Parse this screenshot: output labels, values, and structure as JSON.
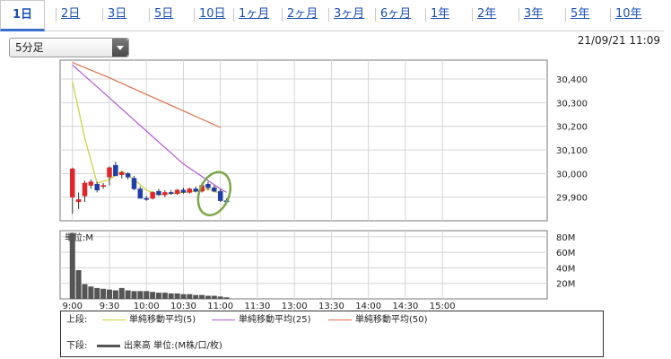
{
  "tabs": [
    {
      "label": "1日",
      "active": true
    },
    {
      "label": "2日"
    },
    {
      "label": "3日"
    },
    {
      "label": "5日"
    },
    {
      "label": "10日"
    },
    {
      "label": "1ヶ月"
    },
    {
      "label": "2ヶ月"
    },
    {
      "label": "3ヶ月"
    },
    {
      "label": "6ヶ月"
    },
    {
      "label": "1年"
    },
    {
      "label": "2年"
    },
    {
      "label": "3年"
    },
    {
      "label": "5年"
    },
    {
      "label": "10年"
    }
  ],
  "interval_select": {
    "selected": "5分足"
  },
  "timestamp": "21/09/21 11:09",
  "legend": {
    "upper_caption": "上段:",
    "lower_caption": "下段:",
    "ma5": {
      "label": "単純移動平均(5)",
      "color": "#c9d230"
    },
    "ma25": {
      "label": "単純移動平均(25)",
      "color": "#b05ad8"
    },
    "ma50": {
      "label": "単純移動平均(50)",
      "color": "#e0704a"
    },
    "volume": {
      "label": "出来高 単位:(M株/口/枚)",
      "color": "#555555"
    }
  },
  "chart_data": {
    "type": "candlestick",
    "price_panel": {
      "ylim": [
        29800,
        30480
      ],
      "yticks": [
        29900,
        30000,
        30100,
        30200,
        30300,
        30400
      ],
      "ytick_labels": [
        "29,900",
        "30,000",
        "30,100",
        "30,200",
        "30,300",
        "30,400"
      ]
    },
    "volume_panel": {
      "unit_label": "単位:M",
      "ylim": [
        0,
        88
      ],
      "yticks": [
        20,
        40,
        60,
        80
      ],
      "ytick_labels": [
        "20M",
        "40M",
        "60M",
        "80M"
      ]
    },
    "xlim": [
      "8:50",
      "15:25"
    ],
    "xticks": [
      "9:00",
      "9:30",
      "10:00",
      "10:30",
      "11:00",
      "11:30",
      "13:00",
      "13:30",
      "14:00",
      "14:30",
      "15:00"
    ],
    "xtick_positions": [
      "9:00",
      "9:30",
      "10:00",
      "10:30",
      "11:00",
      "11:30",
      "12:00",
      "12:30",
      "13:00",
      "13:30",
      "14:00"
    ],
    "candles": [
      {
        "t": "9:00",
        "o": 29900,
        "h": 30025,
        "l": 29830,
        "c": 30020
      },
      {
        "t": "9:05",
        "o": 29880,
        "h": 29920,
        "l": 29850,
        "c": 29890
      },
      {
        "t": "9:10",
        "o": 29905,
        "h": 29970,
        "l": 29880,
        "c": 29960
      },
      {
        "t": "9:15",
        "o": 29950,
        "h": 29975,
        "l": 29935,
        "c": 29965
      },
      {
        "t": "9:20",
        "o": 29955,
        "h": 29965,
        "l": 29920,
        "c": 29930
      },
      {
        "t": "9:25",
        "o": 29945,
        "h": 29960,
        "l": 29935,
        "c": 29950
      },
      {
        "t": "9:30",
        "o": 29985,
        "h": 30030,
        "l": 29950,
        "c": 30025
      },
      {
        "t": "9:35",
        "o": 30035,
        "h": 30050,
        "l": 29990,
        "c": 29990
      },
      {
        "t": "9:40",
        "o": 29995,
        "h": 30010,
        "l": 29980,
        "c": 30005
      },
      {
        "t": "9:45",
        "o": 30000,
        "h": 30005,
        "l": 29975,
        "c": 29985
      },
      {
        "t": "9:50",
        "o": 29980,
        "h": 29990,
        "l": 29930,
        "c": 29935
      },
      {
        "t": "9:55",
        "o": 29935,
        "h": 29945,
        "l": 29895,
        "c": 29895
      },
      {
        "t": "10:00",
        "o": 29895,
        "h": 29905,
        "l": 29885,
        "c": 29890
      },
      {
        "t": "10:05",
        "o": 29895,
        "h": 29925,
        "l": 29890,
        "c": 29920
      },
      {
        "t": "10:10",
        "o": 29925,
        "h": 29935,
        "l": 29905,
        "c": 29910
      },
      {
        "t": "10:15",
        "o": 29910,
        "h": 29930,
        "l": 29900,
        "c": 29920
      },
      {
        "t": "10:20",
        "o": 29920,
        "h": 29930,
        "l": 29910,
        "c": 29915
      },
      {
        "t": "10:25",
        "o": 29915,
        "h": 29935,
        "l": 29910,
        "c": 29930
      },
      {
        "t": "10:30",
        "o": 29930,
        "h": 29940,
        "l": 29915,
        "c": 29920
      },
      {
        "t": "10:35",
        "o": 29920,
        "h": 29940,
        "l": 29915,
        "c": 29935
      },
      {
        "t": "10:40",
        "o": 29935,
        "h": 29945,
        "l": 29920,
        "c": 29925
      },
      {
        "t": "10:45",
        "o": 29925,
        "h": 29960,
        "l": 29920,
        "c": 29950
      },
      {
        "t": "10:50",
        "o": 29955,
        "h": 29965,
        "l": 29930,
        "c": 29940
      },
      {
        "t": "10:55",
        "o": 29940,
        "h": 29950,
        "l": 29920,
        "c": 29925
      },
      {
        "t": "11:00",
        "o": 29925,
        "h": 29935,
        "l": 29880,
        "c": 29885
      },
      {
        "t": "11:05",
        "o": 29885,
        "h": 29895,
        "l": 29875,
        "c": 29880
      }
    ],
    "series": [
      {
        "name": "単純移動平均(5)",
        "x": [
          "9:00",
          "9:10",
          "9:20",
          "9:30",
          "9:40",
          "9:50",
          "10:00",
          "10:10",
          "10:20",
          "10:30",
          "10:40",
          "10:50",
          "11:00"
        ],
        "values": [
          30390,
          30150,
          29960,
          29975,
          30010,
          29975,
          29930,
          29910,
          29915,
          29920,
          29925,
          29935,
          29915
        ]
      },
      {
        "name": "単純移動平均(25)",
        "x": [
          "9:00",
          "9:30",
          "10:00",
          "10:30",
          "11:00",
          "11:05"
        ],
        "values": [
          30460,
          30320,
          30180,
          30040,
          29935,
          29920
        ]
      },
      {
        "name": "単純移動平均(50)",
        "x": [
          "9:00",
          "9:30",
          "10:00",
          "10:30",
          "11:00"
        ],
        "values": [
          30470,
          30405,
          30335,
          30265,
          30195
        ]
      }
    ],
    "volume": {
      "x": [
        "9:00",
        "9:05",
        "9:10",
        "9:15",
        "9:20",
        "9:25",
        "9:30",
        "9:35",
        "9:40",
        "9:45",
        "9:50",
        "9:55",
        "10:00",
        "10:05",
        "10:10",
        "10:15",
        "10:20",
        "10:25",
        "10:30",
        "10:35",
        "10:40",
        "10:45",
        "10:50",
        "10:55",
        "11:00",
        "11:05"
      ],
      "values": [
        85,
        37,
        19,
        16,
        14,
        13,
        12,
        11,
        14,
        11,
        10,
        10,
        10,
        9,
        8,
        8,
        7,
        7,
        6,
        6,
        5,
        5,
        4,
        4,
        3,
        2
      ]
    },
    "annotation": {
      "shape": "ellipse",
      "color": "#7da84a",
      "center": {
        "t": "10:55",
        "y": 29915
      },
      "rx_minutes": 12,
      "ry": 95
    }
  }
}
